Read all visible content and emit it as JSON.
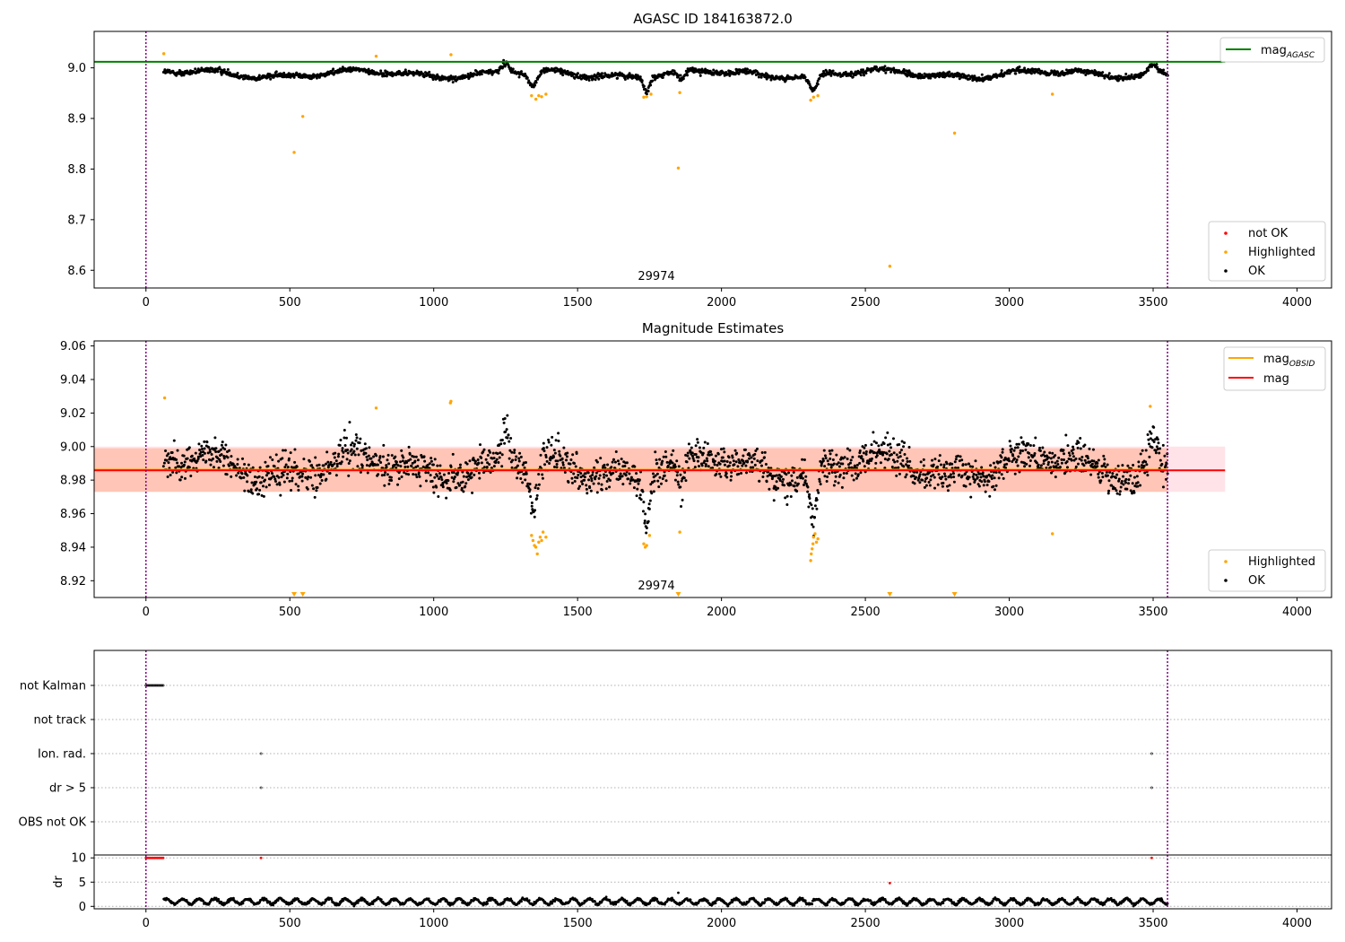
{
  "colors": {
    "ok": "#000000",
    "highlighted": "#ffa500",
    "not_ok": "#ff0000",
    "agasc_line": "#008000",
    "obsid_mag_line": "#ffa500",
    "mag_line": "#ff0000",
    "band_mag": "#ffc0cb",
    "band_obsid": "#ffa07a",
    "obs_boundary": "#800080",
    "grid": "#b0b0b0"
  },
  "chart_data": [
    {
      "name": "agasc-panel",
      "type": "scatter",
      "title": "AGASC ID 184163872.0",
      "xlim": [
        -180,
        4120
      ],
      "ylim": [
        8.565,
        9.072
      ],
      "xticks": [
        0,
        500,
        1000,
        1500,
        2000,
        2500,
        3000,
        3500,
        4000
      ],
      "xtick_labels": [
        "0",
        "500",
        "1000",
        "1500",
        "2000",
        "2500",
        "3000",
        "3500",
        "4000"
      ],
      "yticks": [
        8.6,
        8.7,
        8.8,
        8.9,
        9.0
      ],
      "ytick_labels": [
        "8.6",
        "8.7",
        "8.8",
        "8.9",
        "9.0"
      ],
      "obs_boundaries": [
        0,
        3550
      ],
      "obsid_label": "29974",
      "obsid_label_x": 1775,
      "hlines": [
        {
          "name": "mag_AGASC",
          "y": 9.012,
          "x": [
            -180,
            3750
          ],
          "color": "#008000"
        }
      ],
      "highlighted": {
        "x": [
          62,
          515,
          545,
          800,
          1060,
          1340,
          1355,
          1365,
          1375,
          1390,
          1730,
          1740,
          1755,
          1850,
          1855,
          2310,
          2320,
          2335,
          2585,
          2810,
          3150
        ],
        "y": [
          9.028,
          8.833,
          8.904,
          9.023,
          9.026,
          8.945,
          8.938,
          8.945,
          8.943,
          8.948,
          8.942,
          8.943,
          8.948,
          8.802,
          8.951,
          8.936,
          8.942,
          8.945,
          8.608,
          8.871,
          8.948
        ]
      },
      "segments": [
        {
          "start": 62,
          "end": 3550,
          "count": 2050,
          "noise": 0.0045
        },
        {
          "x": 1345,
          "amp": 0.03,
          "w": 22
        },
        {
          "x": 1740,
          "amp": 0.028,
          "w": 15
        },
        {
          "x": 1860,
          "amp": 0.018,
          "w": 20
        },
        {
          "x": 2320,
          "amp": 0.032,
          "w": 18
        },
        {
          "x": 1250,
          "amp": -0.02,
          "w": 20
        },
        {
          "x": 3500,
          "amp": -0.018,
          "w": 25
        }
      ],
      "legends": [
        {
          "position": "top-right",
          "entries": [
            {
              "label": "mag",
              "subscript": "AGASC",
              "kind": "line",
              "color": "#008000"
            }
          ]
        },
        {
          "position": "bottom-right",
          "entries": [
            {
              "label": "not OK",
              "kind": "marker",
              "color": "#ff0000"
            },
            {
              "label": "Highlighted",
              "kind": "marker",
              "color": "#ffa500"
            },
            {
              "label": "OK",
              "kind": "marker",
              "color": "#000000"
            }
          ]
        }
      ]
    },
    {
      "name": "estimates-panel",
      "type": "scatter",
      "title": "Magnitude Estimates",
      "xlim": [
        -180,
        4120
      ],
      "ylim": [
        8.91,
        9.063
      ],
      "xticks": [
        0,
        500,
        1000,
        1500,
        2000,
        2500,
        3000,
        3500,
        4000
      ],
      "xtick_labels": [
        "0",
        "500",
        "1000",
        "1500",
        "2000",
        "2500",
        "3000",
        "3500",
        "4000"
      ],
      "yticks": [
        8.92,
        8.94,
        8.96,
        8.98,
        9.0,
        9.02,
        9.04,
        9.06
      ],
      "ytick_labels": [
        "8.92",
        "8.94",
        "8.96",
        "8.98",
        "9.00",
        "9.02",
        "9.04",
        "9.06"
      ],
      "obs_boundaries": [
        0,
        3550
      ],
      "obsid_label": "29974",
      "obsid_label_x": 1775,
      "bands": [
        {
          "name": "mag-band",
          "y": [
            8.973,
            9.0
          ],
          "x": [
            -180,
            3750
          ],
          "color": "#ffc0cb"
        },
        {
          "name": "obsid-band",
          "y": [
            8.973,
            8.999
          ],
          "x": [
            -180,
            3550
          ],
          "color": "#ffa07a"
        }
      ],
      "hlines": [
        {
          "name": "mag_OBSID",
          "y": 8.9862,
          "x": [
            -180,
            3550
          ],
          "color": "#ffa500"
        },
        {
          "name": "mag",
          "y": 8.9858,
          "x": [
            -180,
            3750
          ],
          "color": "#ff0000"
        }
      ],
      "highlighted": {
        "x": [
          65,
          800,
          1058,
          1060,
          1340,
          1345,
          1350,
          1355,
          1360,
          1365,
          1370,
          1375,
          1380,
          1390,
          1730,
          1735,
          1740,
          1750,
          1855,
          2310,
          2312,
          2315,
          2318,
          2320,
          2325,
          2330,
          2335,
          3150,
          3490
        ],
        "y": [
          9.029,
          9.023,
          9.026,
          9.027,
          8.947,
          8.944,
          8.941,
          8.94,
          8.936,
          8.943,
          8.946,
          8.944,
          8.949,
          8.946,
          8.942,
          8.94,
          8.941,
          8.947,
          8.949,
          8.932,
          8.936,
          8.939,
          8.942,
          8.946,
          8.948,
          8.943,
          8.945,
          8.948,
          9.024
        ]
      },
      "out_of_range_low": [
        515,
        545,
        1850,
        2585,
        2810
      ],
      "legends": [
        {
          "position": "top-right",
          "entries": [
            {
              "label": "mag",
              "subscript": "OBSID",
              "kind": "line",
              "color": "#ffa500"
            },
            {
              "label": "mag",
              "kind": "line",
              "color": "#ff0000"
            }
          ]
        },
        {
          "position": "bottom-right",
          "entries": [
            {
              "label": "Highlighted",
              "kind": "marker",
              "color": "#ffa500"
            },
            {
              "label": "OK",
              "kind": "marker",
              "color": "#000000"
            }
          ]
        }
      ]
    },
    {
      "name": "flags-panel",
      "type": "scatter",
      "title": "",
      "xlim": [
        -180,
        4120
      ],
      "ytick_labels": [
        "not Kalman",
        "not track",
        "Ion. rad.",
        "dr > 5",
        "OBS not OK"
      ],
      "flags": [
        {
          "label": "not Kalman",
          "x_range": [
            0,
            60
          ],
          "x": []
        },
        {
          "label": "not track",
          "x_range": [],
          "x": []
        },
        {
          "label": "Ion. rad.",
          "x_range": [],
          "x": [
            400,
            3495
          ]
        },
        {
          "label": "dr > 5",
          "x_range": [],
          "x": [
            400,
            3495
          ]
        },
        {
          "label": "OBS not OK",
          "x_range": [],
          "x": []
        }
      ],
      "obs_boundaries": [
        0,
        3550
      ]
    },
    {
      "name": "dr-panel",
      "type": "scatter",
      "ylabel": "dr",
      "xlim": [
        -180,
        4120
      ],
      "ylim": [
        -0.5,
        10.6
      ],
      "xticks": [
        0,
        500,
        1000,
        1500,
        2000,
        2500,
        3000,
        3500,
        4000
      ],
      "xtick_labels": [
        "0",
        "500",
        "1000",
        "1500",
        "2000",
        "2500",
        "3000",
        "3500",
        "4000"
      ],
      "yticks": [
        0,
        5,
        10
      ],
      "ytick_labels": [
        "0",
        "5",
        "10"
      ],
      "not_ok": {
        "x": [
          0,
          5,
          10,
          15,
          20,
          25,
          30,
          35,
          40,
          45,
          50,
          55,
          60,
          400,
          2585,
          3495
        ],
        "y": [
          10,
          10,
          10,
          10,
          10,
          10,
          10,
          10,
          10,
          10,
          10,
          10,
          10,
          10,
          4.8,
          10
        ]
      },
      "ok_outliers": {
        "x": [
          1850
        ],
        "y": [
          2.8
        ]
      },
      "ok_range": [
        62,
        3550
      ],
      "obs_boundaries": [
        0,
        3550
      ]
    }
  ]
}
